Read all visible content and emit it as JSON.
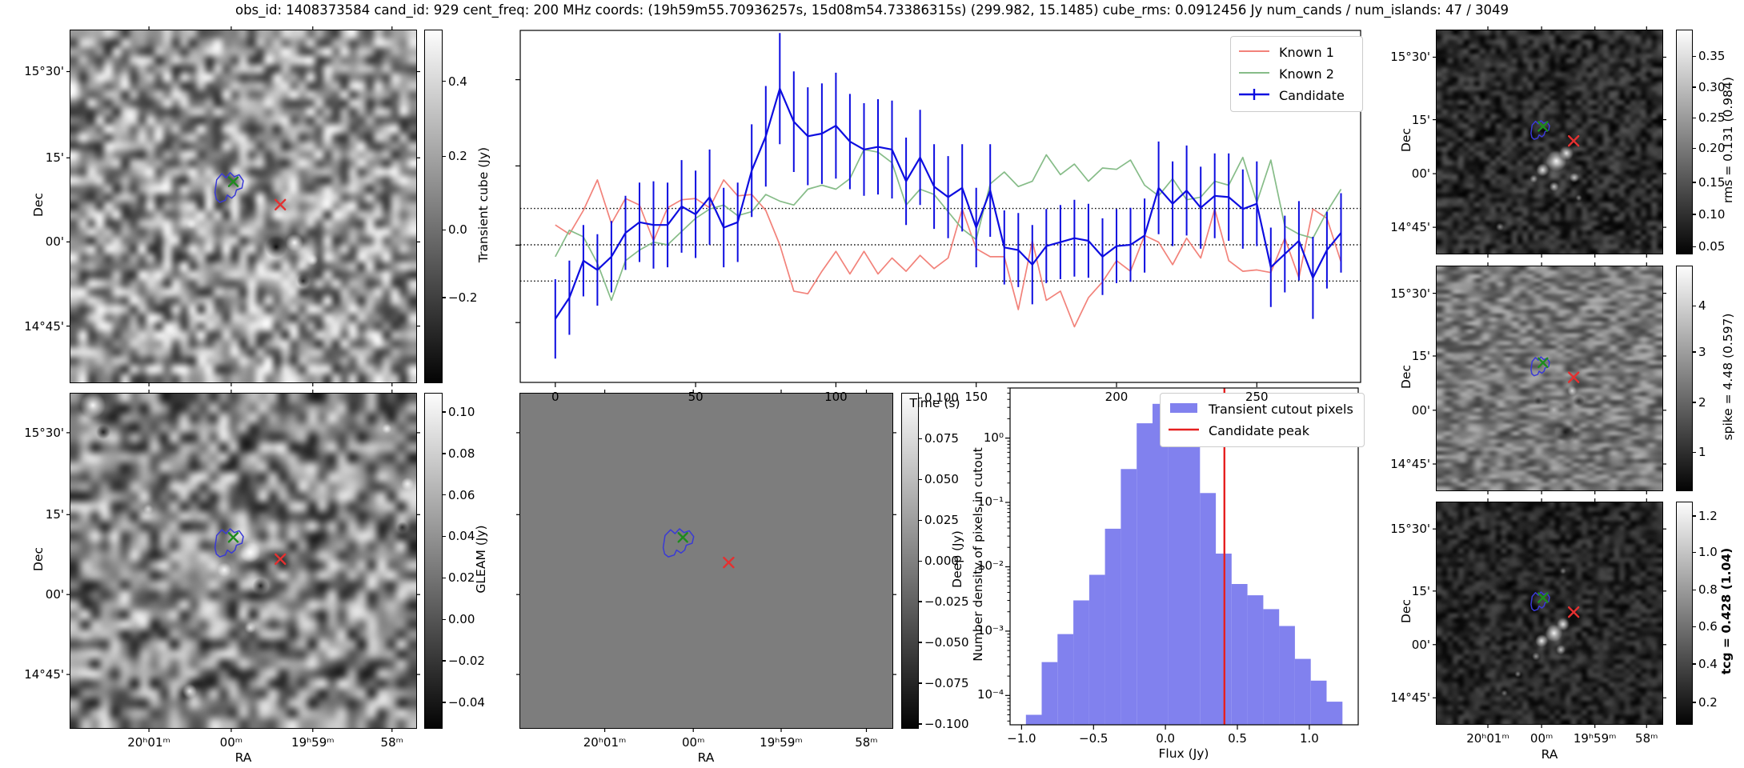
{
  "title": "obs_id: 1408373584 cand_id: 929 cent_freq: 200 MHz coords: (19h59m55.70936257s, 15d08m54.73386315s) (299.982, 15.1485) cube_rms: 0.0912456 Jy num_cands / num_islands: 47 / 3049",
  "axis": {
    "dec_label": "Dec",
    "ra_label": "RA",
    "dec_ticks": [
      "15°30'",
      "15'",
      "00'",
      "14°45'"
    ],
    "ra_ticks": [
      "20ʰ01ᵐ",
      "00ᵐ",
      "19ʰ59ᵐ",
      "58ᵐ"
    ]
  },
  "overlay": {
    "contour_color": "#3a3ad6",
    "known_x_color": "#1e8b1e",
    "candidate_x_color": "#e53030"
  },
  "colorbars": {
    "transient": {
      "label": "Transient cube (Jy)",
      "ticks": [
        "0.4",
        "0.2",
        "0.0",
        "−0.2"
      ]
    },
    "gleam": {
      "label": "GLEAM (Jy)",
      "ticks": [
        "0.10",
        "0.08",
        "0.06",
        "0.04",
        "0.02",
        "0.00",
        "−0.02",
        "−0.04"
      ]
    },
    "deep": {
      "label": "Deep (Jy)",
      "ticks": [
        "0.100",
        "0.075",
        "0.050",
        "0.025",
        "0.000",
        "−0.025",
        "−0.050",
        "−0.075",
        "−0.100"
      ]
    },
    "rms": {
      "label": "rms = 0.131 (0.984)",
      "ticks": [
        "0.35",
        "0.30",
        "0.25",
        "0.20",
        "0.15",
        "0.10",
        "0.05"
      ]
    },
    "spike": {
      "label": "spike = 4.48 (0.597)",
      "ticks": [
        "4",
        "3",
        "2",
        "1"
      ]
    },
    "tcg": {
      "label": "tcg = 0.428 (1.04)",
      "ticks": [
        "1.2",
        "1.0",
        "0.8",
        "0.6",
        "0.4",
        "0.2"
      ],
      "bold": true
    }
  },
  "chart_data": [
    {
      "type": "line",
      "title": "",
      "xlabel": "Time (s)",
      "ylabel": "",
      "xlim": [
        -12.5,
        287
      ],
      "ylim": [
        -1.04,
        1.62
      ],
      "x_ticks": [
        0,
        50,
        100,
        150,
        200,
        250
      ],
      "dotted_lines": [
        0.274,
        0.0,
        -0.274
      ],
      "legend_position": "upper right",
      "x": [
        0,
        5,
        10,
        15,
        20,
        25,
        30,
        35,
        40,
        45,
        50,
        55,
        60,
        65,
        70,
        75,
        80,
        85,
        90,
        95,
        100,
        105,
        110,
        115,
        120,
        125,
        130,
        135,
        140,
        145,
        150,
        155,
        160,
        165,
        170,
        175,
        180,
        185,
        190,
        195,
        200,
        205,
        210,
        215,
        220,
        225,
        230,
        235,
        240,
        245,
        250,
        255,
        260,
        265,
        270,
        275,
        280
      ],
      "series": [
        {
          "name": "Known 1",
          "color": "#f2827a",
          "y": [
            0.15,
            0.08,
            0.26,
            0.49,
            0.16,
            0.35,
            0.3,
            0.03,
            0.28,
            0.34,
            0.35,
            0.28,
            0.49,
            0.37,
            0.38,
            0.26,
            0.0,
            -0.35,
            -0.37,
            -0.2,
            -0.05,
            -0.22,
            -0.05,
            -0.22,
            -0.1,
            -0.2,
            -0.08,
            -0.18,
            -0.1,
            0.27,
            -0.03,
            -0.09,
            -0.09,
            -0.49,
            0.03,
            -0.42,
            -0.35,
            -0.62,
            -0.4,
            -0.28,
            -0.12,
            -0.2,
            0.07,
            0.02,
            -0.15,
            0.05,
            -0.1,
            0.27,
            -0.12,
            -0.2,
            -0.19,
            -0.21,
            0.05,
            -0.25,
            0.27,
            0.2,
            -0.13
          ]
        },
        {
          "name": "Known 2",
          "color": "#86bc88",
          "y": [
            -0.09,
            0.11,
            0.06,
            -0.14,
            -0.42,
            -0.12,
            -0.04,
            0.02,
            0.0,
            0.1,
            0.2,
            0.27,
            0.3,
            0.22,
            0.25,
            0.38,
            0.33,
            0.3,
            0.42,
            0.45,
            0.42,
            0.5,
            0.72,
            0.7,
            0.62,
            0.3,
            0.42,
            0.38,
            0.25,
            0.12,
            0.04,
            0.46,
            0.55,
            0.44,
            0.48,
            0.68,
            0.53,
            0.61,
            0.48,
            0.58,
            0.57,
            0.64,
            0.45,
            0.37,
            0.5,
            0.34,
            0.36,
            0.48,
            0.45,
            0.66,
            0.32,
            0.64,
            0.14,
            0.08,
            0.05,
            0.25,
            0.42
          ]
        },
        {
          "name": "Candidate",
          "color": "#0d0de0",
          "y": [
            -0.56,
            -0.4,
            -0.12,
            -0.19,
            -0.09,
            0.09,
            0.17,
            0.15,
            0.15,
            0.29,
            0.23,
            0.36,
            0.13,
            0.17,
            0.56,
            0.82,
            1.18,
            0.93,
            0.82,
            0.84,
            0.9,
            0.78,
            0.72,
            0.74,
            0.72,
            0.48,
            0.66,
            0.44,
            0.36,
            0.43,
            0.13,
            0.41,
            -0.02,
            -0.04,
            -0.15,
            -0.01,
            0.02,
            0.05,
            0.03,
            -0.09,
            -0.01,
            0.0,
            0.07,
            0.43,
            0.31,
            0.41,
            0.28,
            0.37,
            0.36,
            0.27,
            0.31,
            -0.17,
            -0.07,
            0.03,
            -0.25,
            -0.04,
            0.09
          ],
          "yerr": [
            0.3,
            0.28,
            0.27,
            0.27,
            0.27,
            0.28,
            0.3,
            0.33,
            0.32,
            0.35,
            0.33,
            0.36,
            0.3,
            0.3,
            0.35,
            0.38,
            0.42,
            0.38,
            0.37,
            0.38,
            0.4,
            0.36,
            0.35,
            0.36,
            0.37,
            0.33,
            0.36,
            0.32,
            0.31,
            0.33,
            0.3,
            0.35,
            0.28,
            0.28,
            0.3,
            0.28,
            0.28,
            0.29,
            0.28,
            0.29,
            0.28,
            0.28,
            0.28,
            0.35,
            0.32,
            0.34,
            0.31,
            0.32,
            0.33,
            0.3,
            0.32,
            0.3,
            0.29,
            0.3,
            0.31,
            0.29,
            0.3
          ]
        }
      ]
    },
    {
      "type": "bar",
      "title": "",
      "xlabel": "Flux (Jy)",
      "ylabel": "Number density of pixels in cutout",
      "bar_color": "#8181ee",
      "bar_label": "Transient cutout pixels",
      "xlim": [
        -1.08,
        1.34
      ],
      "ylim": [
        3.5e-05,
        6.0
      ],
      "yscale": "log",
      "x_ticks": [
        -1.0,
        -0.5,
        0.0,
        0.5,
        1.0
      ],
      "y_tick_labels": [
        "10⁰",
        "10⁻¹",
        "10⁻²",
        "10⁻³",
        "10⁻⁴"
      ],
      "y_tick_values": [
        1,
        0.1,
        0.01,
        0.001,
        0.0001
      ],
      "bin_start": -0.97,
      "bin_width": 0.11,
      "densities": [
        5e-05,
        0.00033,
        0.0009,
        0.003,
        0.0075,
        0.039,
        0.33,
        1.7,
        3.4,
        2.85,
        1.0,
        0.14,
        0.016,
        0.0054,
        0.0036,
        0.0022,
        0.0012,
        0.00037,
        0.00017,
        8e-05
      ],
      "vline": {
        "label": "Candidate peak",
        "x": 0.41,
        "color": "#e62020"
      }
    }
  ]
}
